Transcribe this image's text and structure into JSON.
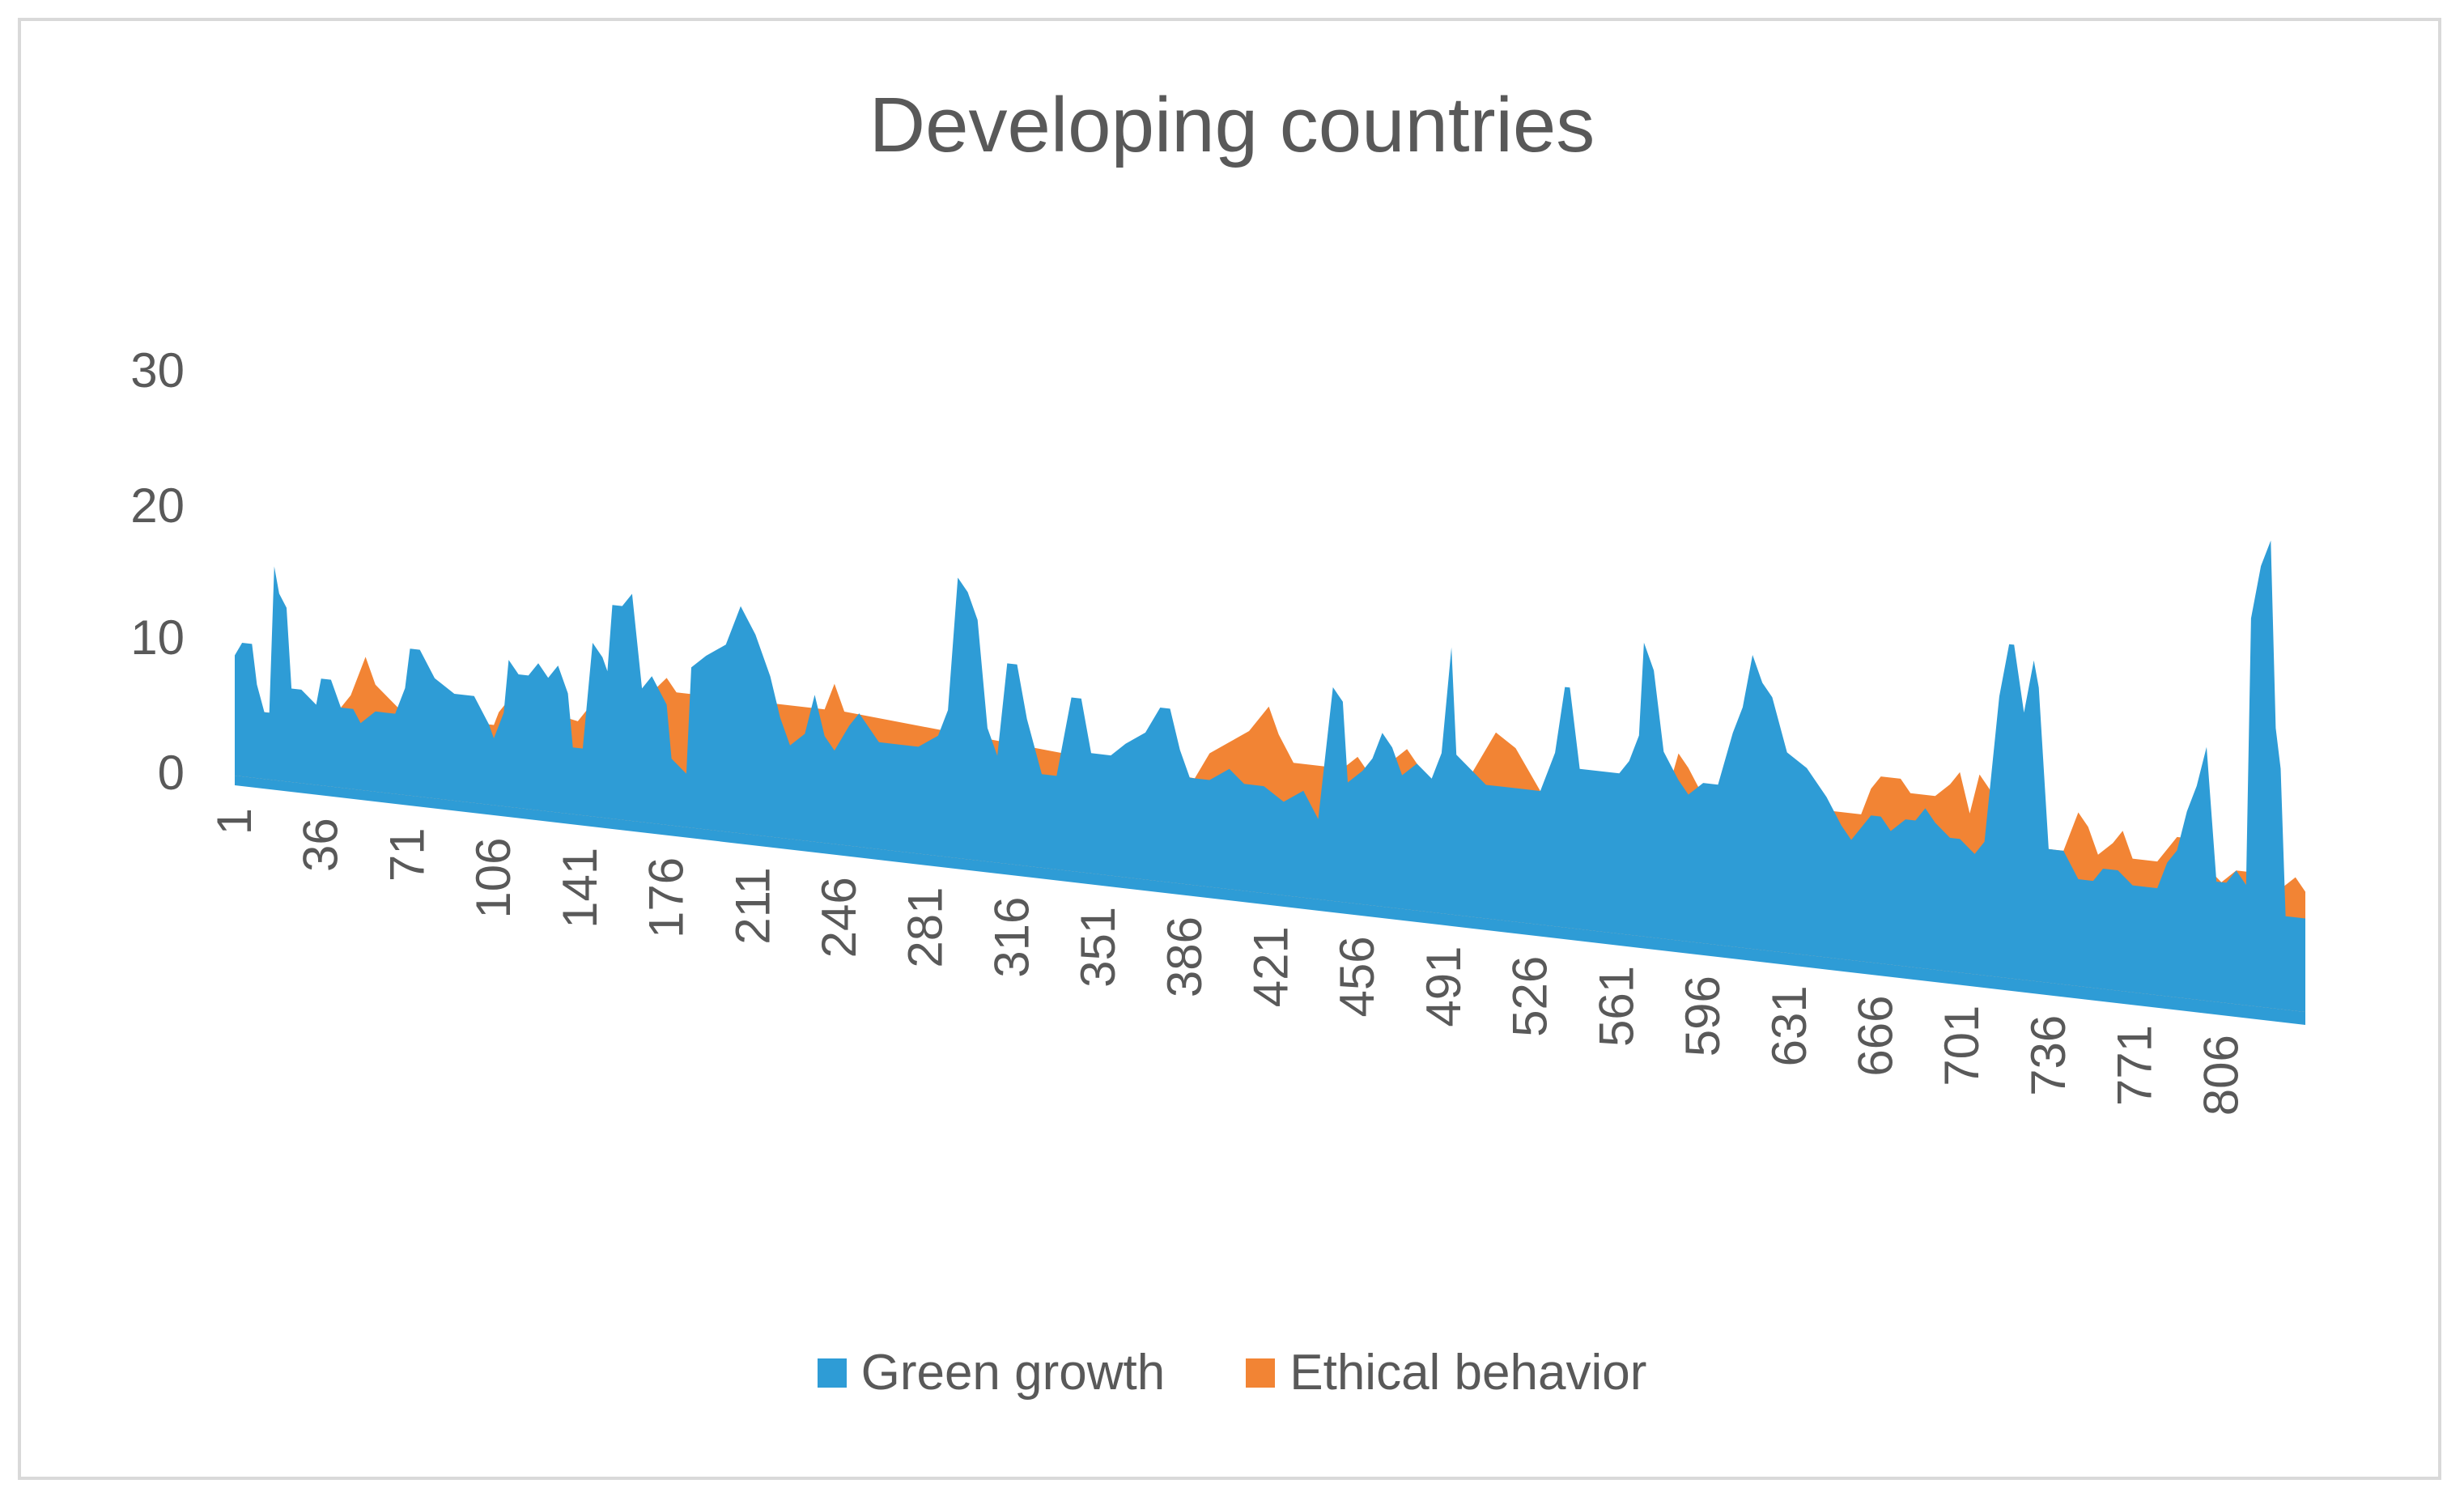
{
  "chart_data": {
    "type": "area",
    "title": "Developing countries",
    "xlabel": "",
    "ylabel": "",
    "ylim": [
      0,
      30
    ],
    "y_ticks": [
      "0",
      "10",
      "20",
      "30"
    ],
    "x_tick_labels": [
      "1",
      "36",
      "71",
      "106",
      "141",
      "176",
      "211",
      "246",
      "281",
      "316",
      "351",
      "386",
      "421",
      "456",
      "491",
      "526",
      "561",
      "596",
      "631",
      "666",
      "701",
      "736",
      "771",
      "806"
    ],
    "x_count": 840,
    "rendering": "3-D stacked area, perspective view",
    "legend_position": "bottom",
    "grid": false,
    "series": [
      {
        "name": "Green growth",
        "color": "#2E9CD6",
        "points": [
          [
            1,
            9
          ],
          [
            4,
            10
          ],
          [
            8,
            10
          ],
          [
            10,
            7
          ],
          [
            13,
            5
          ],
          [
            15,
            5
          ],
          [
            17,
            16
          ],
          [
            19,
            14
          ],
          [
            22,
            13
          ],
          [
            24,
            7
          ],
          [
            28,
            7
          ],
          [
            34,
            6
          ],
          [
            36,
            8
          ],
          [
            40,
            8
          ],
          [
            44,
            6
          ],
          [
            49,
            6
          ],
          [
            52,
            5
          ],
          [
            58,
            6
          ],
          [
            62,
            6
          ],
          [
            66,
            6
          ],
          [
            70,
            8
          ],
          [
            72,
            11
          ],
          [
            76,
            11
          ],
          [
            82,
            9
          ],
          [
            90,
            8
          ],
          [
            98,
            8
          ],
          [
            104,
            6
          ],
          [
            106,
            5
          ],
          [
            110,
            7
          ],
          [
            112,
            11
          ],
          [
            116,
            10
          ],
          [
            120,
            10
          ],
          [
            124,
            11
          ],
          [
            128,
            10
          ],
          [
            132,
            11
          ],
          [
            136,
            9
          ],
          [
            138,
            5
          ],
          [
            142,
            5
          ],
          [
            146,
            13
          ],
          [
            150,
            12
          ],
          [
            152,
            11
          ],
          [
            154,
            16
          ],
          [
            158,
            16
          ],
          [
            162,
            17
          ],
          [
            166,
            10
          ],
          [
            170,
            11
          ],
          [
            176,
            9
          ],
          [
            178,
            5
          ],
          [
            184,
            4
          ],
          [
            186,
            12
          ],
          [
            192,
            13
          ],
          [
            200,
            14
          ],
          [
            206,
            17
          ],
          [
            212,
            15
          ],
          [
            218,
            12
          ],
          [
            222,
            9
          ],
          [
            226,
            7
          ],
          [
            232,
            8
          ],
          [
            236,
            11
          ],
          [
            240,
            8
          ],
          [
            244,
            7
          ],
          [
            250,
            9
          ],
          [
            254,
            10
          ],
          [
            258,
            9
          ],
          [
            262,
            8
          ],
          [
            270,
            8
          ],
          [
            278,
            8
          ],
          [
            286,
            9
          ],
          [
            290,
            11
          ],
          [
            294,
            21
          ],
          [
            298,
            20
          ],
          [
            302,
            18
          ],
          [
            306,
            10
          ],
          [
            310,
            8
          ],
          [
            314,
            15
          ],
          [
            318,
            15
          ],
          [
            322,
            11
          ],
          [
            328,
            7
          ],
          [
            334,
            7
          ],
          [
            340,
            13
          ],
          [
            344,
            13
          ],
          [
            348,
            9
          ],
          [
            356,
            9
          ],
          [
            362,
            10
          ],
          [
            370,
            11
          ],
          [
            376,
            13
          ],
          [
            380,
            13
          ],
          [
            384,
            10
          ],
          [
            388,
            8
          ],
          [
            396,
            8
          ],
          [
            404,
            9
          ],
          [
            410,
            8
          ],
          [
            418,
            8
          ],
          [
            426,
            7
          ],
          [
            434,
            8
          ],
          [
            440,
            6
          ],
          [
            446,
            16
          ],
          [
            450,
            15
          ],
          [
            452,
            9
          ],
          [
            458,
            10
          ],
          [
            462,
            11
          ],
          [
            466,
            13
          ],
          [
            470,
            12
          ],
          [
            474,
            10
          ],
          [
            480,
            11
          ],
          [
            486,
            10
          ],
          [
            490,
            12
          ],
          [
            494,
            20
          ],
          [
            496,
            12
          ],
          [
            502,
            11
          ],
          [
            508,
            10
          ],
          [
            514,
            10
          ],
          [
            522,
            10
          ],
          [
            530,
            10
          ],
          [
            536,
            13
          ],
          [
            540,
            18
          ],
          [
            542,
            18
          ],
          [
            546,
            12
          ],
          [
            550,
            12
          ],
          [
            554,
            12
          ],
          [
            558,
            12
          ],
          [
            562,
            12
          ],
          [
            566,
            13
          ],
          [
            570,
            15
          ],
          [
            572,
            22
          ],
          [
            576,
            20
          ],
          [
            580,
            14
          ],
          [
            586,
            12
          ],
          [
            590,
            11
          ],
          [
            596,
            12
          ],
          [
            602,
            12
          ],
          [
            608,
            16
          ],
          [
            612,
            18
          ],
          [
            616,
            22
          ],
          [
            620,
            20
          ],
          [
            624,
            19
          ],
          [
            630,
            15
          ],
          [
            638,
            14
          ],
          [
            646,
            12
          ],
          [
            652,
            10
          ],
          [
            656,
            9
          ],
          [
            660,
            10
          ],
          [
            664,
            11
          ],
          [
            668,
            11
          ],
          [
            672,
            10
          ],
          [
            678,
            11
          ],
          [
            682,
            11
          ],
          [
            686,
            12
          ],
          [
            690,
            11
          ],
          [
            696,
            10
          ],
          [
            700,
            10
          ],
          [
            706,
            9
          ],
          [
            710,
            10
          ],
          [
            716,
            21
          ],
          [
            720,
            25
          ],
          [
            722,
            25
          ],
          [
            726,
            20
          ],
          [
            730,
            24
          ],
          [
            732,
            22
          ],
          [
            736,
            10
          ],
          [
            742,
            10
          ],
          [
            748,
            8
          ],
          [
            754,
            8
          ],
          [
            758,
            9
          ],
          [
            764,
            9
          ],
          [
            770,
            8
          ],
          [
            776,
            8
          ],
          [
            780,
            8
          ],
          [
            784,
            10
          ],
          [
            788,
            11
          ],
          [
            792,
            14
          ],
          [
            796,
            16
          ],
          [
            800,
            19
          ],
          [
            804,
            9
          ],
          [
            808,
            9
          ],
          [
            812,
            10
          ],
          [
            816,
            9
          ],
          [
            818,
            29
          ],
          [
            822,
            33
          ],
          [
            826,
            35
          ],
          [
            828,
            21
          ],
          [
            830,
            18
          ],
          [
            832,
            7
          ],
          [
            836,
            7
          ],
          [
            840,
            7
          ]
        ]
      },
      {
        "name": "Ethical behavior",
        "color": "#F28434",
        "points": [
          [
            1,
            5
          ],
          [
            40,
            5
          ],
          [
            48,
            7
          ],
          [
            54,
            10
          ],
          [
            58,
            8
          ],
          [
            70,
            6
          ],
          [
            106,
            6
          ],
          [
            108,
            7
          ],
          [
            112,
            8
          ],
          [
            140,
            7
          ],
          [
            144,
            8
          ],
          [
            160,
            8
          ],
          [
            166,
            9
          ],
          [
            176,
            11
          ],
          [
            180,
            10
          ],
          [
            240,
            10
          ],
          [
            244,
            12
          ],
          [
            248,
            10
          ],
          [
            390,
            8
          ],
          [
            396,
            10
          ],
          [
            404,
            11
          ],
          [
            412,
            12
          ],
          [
            420,
            14
          ],
          [
            424,
            12
          ],
          [
            430,
            10
          ],
          [
            450,
            10
          ],
          [
            456,
            11
          ],
          [
            460,
            10
          ],
          [
            470,
            11
          ],
          [
            476,
            12
          ],
          [
            484,
            10
          ],
          [
            500,
            10
          ],
          [
            506,
            12
          ],
          [
            512,
            14
          ],
          [
            520,
            13
          ],
          [
            530,
            10
          ],
          [
            580,
            10
          ],
          [
            586,
            14
          ],
          [
            590,
            13
          ],
          [
            596,
            11
          ],
          [
            660,
            11
          ],
          [
            664,
            13
          ],
          [
            668,
            14
          ],
          [
            676,
            14
          ],
          [
            680,
            13
          ],
          [
            690,
            13
          ],
          [
            696,
            14
          ],
          [
            700,
            15
          ],
          [
            704,
            12
          ],
          [
            708,
            15
          ],
          [
            712,
            14
          ],
          [
            716,
            12
          ],
          [
            736,
            10
          ],
          [
            742,
            10
          ],
          [
            748,
            13
          ],
          [
            752,
            12
          ],
          [
            756,
            10
          ],
          [
            762,
            11
          ],
          [
            766,
            12
          ],
          [
            770,
            10
          ],
          [
            780,
            10
          ],
          [
            784,
            11
          ],
          [
            788,
            12
          ],
          [
            796,
            12
          ],
          [
            800,
            10
          ],
          [
            806,
            9
          ],
          [
            812,
            10
          ],
          [
            820,
            10
          ],
          [
            830,
            9
          ],
          [
            836,
            10
          ],
          [
            840,
            9
          ]
        ]
      }
    ]
  }
}
